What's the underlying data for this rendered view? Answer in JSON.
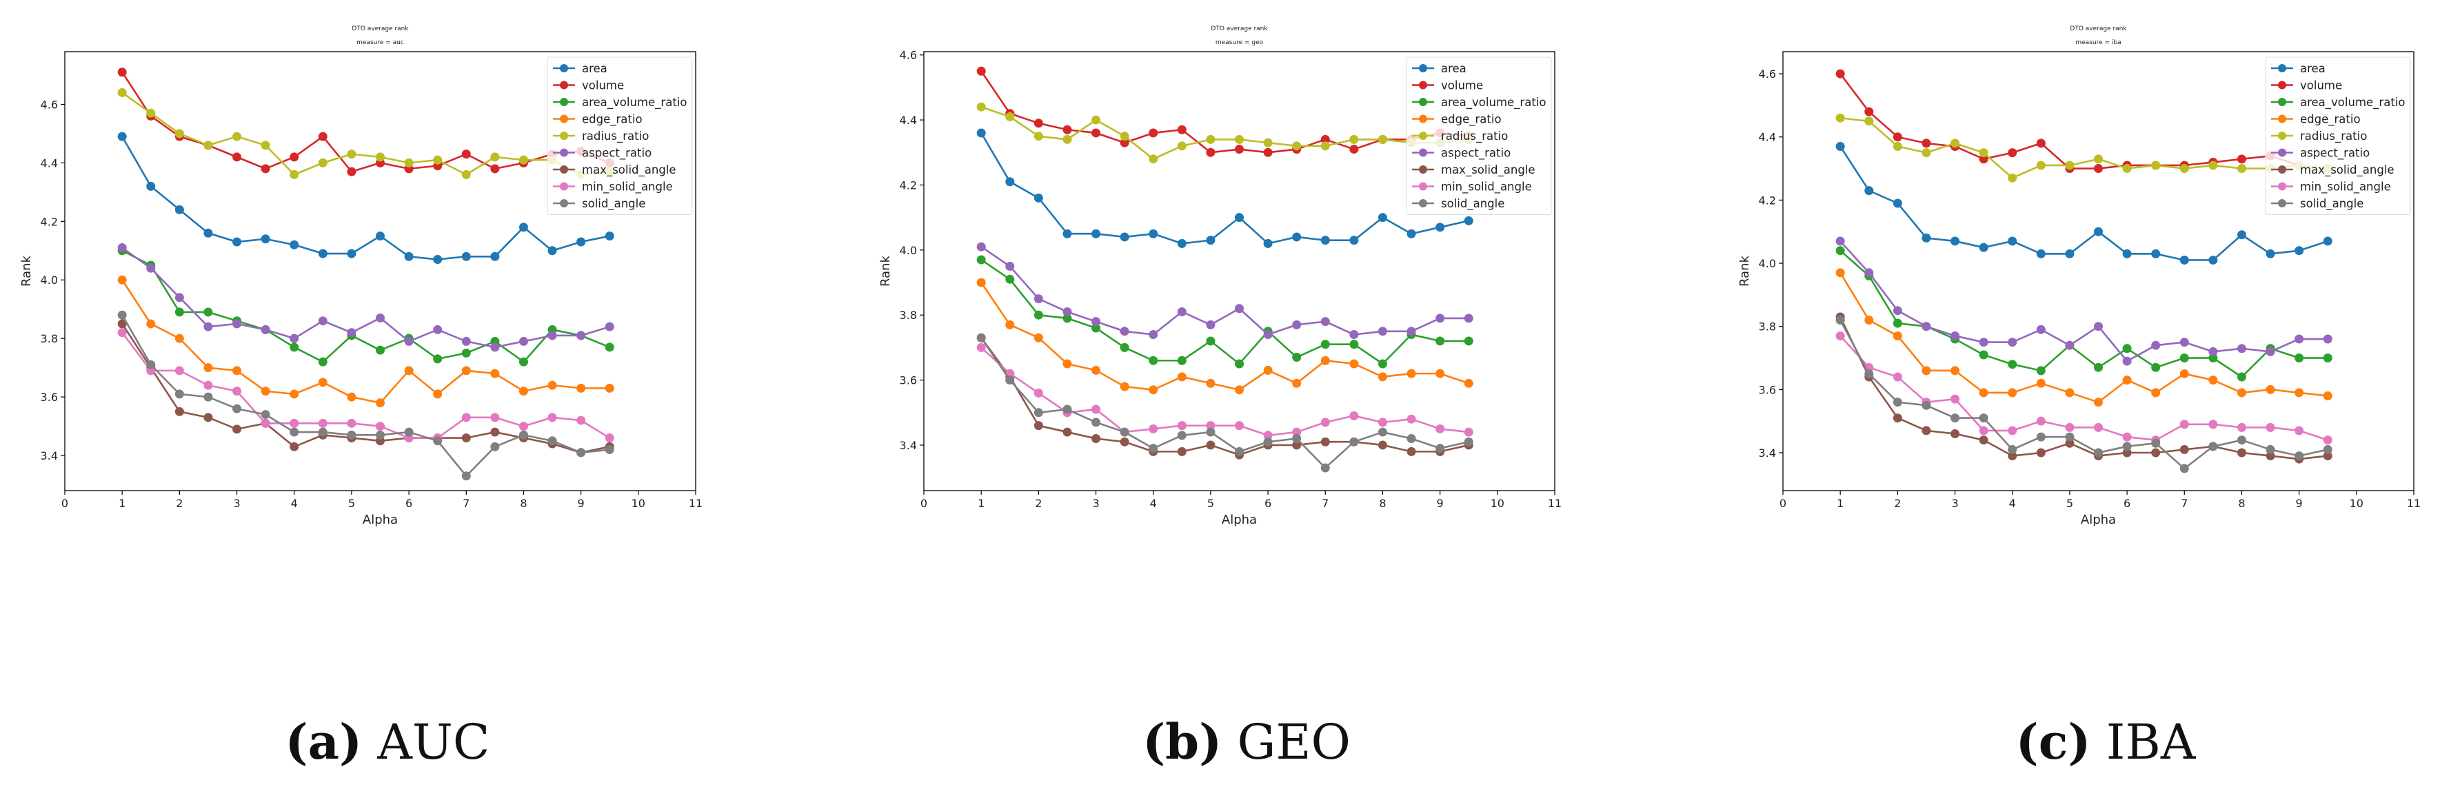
{
  "captions": [
    {
      "tag": "(a)",
      "text": "AUC"
    },
    {
      "tag": "(b)",
      "text": "GEO"
    },
    {
      "tag": "(c)",
      "text": "IBA"
    }
  ],
  "chart_data": [
    {
      "type": "line",
      "title": "DTO average rank",
      "subtitle": "measure = auc",
      "xlabel": "Alpha",
      "ylabel": "Rank",
      "xlim": [
        0,
        11
      ],
      "ylim": [
        3.28,
        4.78
      ],
      "xticks": [
        0,
        1,
        2,
        3,
        4,
        5,
        6,
        7,
        8,
        9,
        10,
        11
      ],
      "yticks": [
        3.4,
        3.6,
        3.8,
        4.0,
        4.2,
        4.4,
        4.6
      ],
      "legend_position": "top-right",
      "grid": false,
      "x": [
        1,
        1.5,
        2,
        2.5,
        3,
        3.5,
        4,
        4.5,
        5,
        5.5,
        6,
        6.5,
        7,
        7.5,
        8,
        8.5,
        9,
        9.5
      ],
      "series": [
        {
          "name": "area",
          "color": "#1f77b4",
          "values": [
            4.49,
            4.32,
            4.24,
            4.16,
            4.13,
            4.14,
            4.12,
            4.09,
            4.09,
            4.15,
            4.08,
            4.07,
            4.08,
            4.08,
            4.18,
            4.1,
            4.13,
            4.15
          ]
        },
        {
          "name": "volume",
          "color": "#d62728",
          "values": [
            4.71,
            4.56,
            4.49,
            4.46,
            4.42,
            4.38,
            4.42,
            4.49,
            4.37,
            4.4,
            4.38,
            4.39,
            4.43,
            4.38,
            4.4,
            4.43,
            4.44,
            4.4
          ]
        },
        {
          "name": "area_volume_ratio",
          "color": "#2ca02c",
          "values": [
            4.1,
            4.05,
            3.89,
            3.89,
            3.86,
            3.83,
            3.77,
            3.72,
            3.81,
            3.76,
            3.8,
            3.73,
            3.75,
            3.79,
            3.72,
            3.83,
            3.81,
            3.77
          ]
        },
        {
          "name": "edge_ratio",
          "color": "#ff7f0e",
          "values": [
            4.0,
            3.85,
            3.8,
            3.7,
            3.69,
            3.62,
            3.61,
            3.65,
            3.6,
            3.58,
            3.69,
            3.61,
            3.69,
            3.68,
            3.62,
            3.64,
            3.63,
            3.63
          ]
        },
        {
          "name": "radius_ratio",
          "color": "#bcbd22",
          "values": [
            4.64,
            4.57,
            4.5,
            4.46,
            4.49,
            4.46,
            4.36,
            4.4,
            4.43,
            4.42,
            4.4,
            4.41,
            4.36,
            4.42,
            4.41,
            4.41,
            4.36,
            4.37
          ]
        },
        {
          "name": "aspect_ratio",
          "color": "#9467bd",
          "values": [
            4.11,
            4.04,
            3.94,
            3.84,
            3.85,
            3.83,
            3.8,
            3.86,
            3.82,
            3.87,
            3.79,
            3.83,
            3.79,
            3.77,
            3.79,
            3.81,
            3.81,
            3.84
          ]
        },
        {
          "name": "max_solid_angle",
          "color": "#8c564b",
          "values": [
            3.85,
            3.7,
            3.55,
            3.53,
            3.49,
            3.51,
            3.43,
            3.47,
            3.46,
            3.45,
            3.46,
            3.46,
            3.46,
            3.48,
            3.46,
            3.44,
            3.41,
            3.43
          ]
        },
        {
          "name": "min_solid_angle",
          "color": "#e377c2",
          "values": [
            3.82,
            3.69,
            3.69,
            3.64,
            3.62,
            3.51,
            3.51,
            3.51,
            3.51,
            3.5,
            3.46,
            3.46,
            3.53,
            3.53,
            3.5,
            3.53,
            3.52,
            3.46
          ]
        },
        {
          "name": "solid_angle",
          "color": "#7f7f7f",
          "values": [
            3.88,
            3.71,
            3.61,
            3.6,
            3.56,
            3.54,
            3.48,
            3.48,
            3.47,
            3.47,
            3.48,
            3.45,
            3.33,
            3.43,
            3.47,
            3.45,
            3.41,
            3.42
          ]
        }
      ]
    },
    {
      "type": "line",
      "title": "DTO average rank",
      "subtitle": "measure = geo",
      "xlabel": "Alpha",
      "ylabel": "Rank",
      "xlim": [
        0,
        11
      ],
      "ylim": [
        3.26,
        4.61
      ],
      "xticks": [
        0,
        1,
        2,
        3,
        4,
        5,
        6,
        7,
        8,
        9,
        10,
        11
      ],
      "yticks": [
        3.4,
        3.6,
        3.8,
        4.0,
        4.2,
        4.4,
        4.6
      ],
      "legend_position": "top-right",
      "grid": false,
      "x": [
        1,
        1.5,
        2,
        2.5,
        3,
        3.5,
        4,
        4.5,
        5,
        5.5,
        6,
        6.5,
        7,
        7.5,
        8,
        8.5,
        9,
        9.5
      ],
      "series": [
        {
          "name": "area",
          "color": "#1f77b4",
          "values": [
            4.36,
            4.21,
            4.16,
            4.05,
            4.05,
            4.04,
            4.05,
            4.02,
            4.03,
            4.1,
            4.02,
            4.04,
            4.03,
            4.03,
            4.1,
            4.05,
            4.07,
            4.09
          ]
        },
        {
          "name": "volume",
          "color": "#d62728",
          "values": [
            4.55,
            4.42,
            4.39,
            4.37,
            4.36,
            4.33,
            4.36,
            4.37,
            4.3,
            4.31,
            4.3,
            4.31,
            4.34,
            4.31,
            4.34,
            4.34,
            4.36,
            4.35
          ]
        },
        {
          "name": "area_volume_ratio",
          "color": "#2ca02c",
          "values": [
            3.97,
            3.91,
            3.8,
            3.79,
            3.76,
            3.7,
            3.66,
            3.66,
            3.72,
            3.65,
            3.75,
            3.67,
            3.71,
            3.71,
            3.65,
            3.74,
            3.72,
            3.72
          ]
        },
        {
          "name": "edge_ratio",
          "color": "#ff7f0e",
          "values": [
            3.9,
            3.77,
            3.73,
            3.65,
            3.63,
            3.58,
            3.57,
            3.61,
            3.59,
            3.57,
            3.63,
            3.59,
            3.66,
            3.65,
            3.61,
            3.62,
            3.62,
            3.59
          ]
        },
        {
          "name": "radius_ratio",
          "color": "#bcbd22",
          "values": [
            4.44,
            4.41,
            4.35,
            4.34,
            4.4,
            4.35,
            4.28,
            4.32,
            4.34,
            4.34,
            4.33,
            4.32,
            4.32,
            4.34,
            4.34,
            4.33,
            4.33,
            4.34
          ]
        },
        {
          "name": "aspect_ratio",
          "color": "#9467bd",
          "values": [
            4.01,
            3.95,
            3.85,
            3.81,
            3.78,
            3.75,
            3.74,
            3.81,
            3.77,
            3.82,
            3.74,
            3.77,
            3.78,
            3.74,
            3.75,
            3.75,
            3.79,
            3.79
          ]
        },
        {
          "name": "max_solid_angle",
          "color": "#8c564b",
          "values": [
            3.73,
            3.61,
            3.46,
            3.44,
            3.42,
            3.41,
            3.38,
            3.38,
            3.4,
            3.37,
            3.4,
            3.4,
            3.41,
            3.41,
            3.4,
            3.38,
            3.38,
            3.4
          ]
        },
        {
          "name": "min_solid_angle",
          "color": "#e377c2",
          "values": [
            3.7,
            3.62,
            3.56,
            3.5,
            3.51,
            3.44,
            3.45,
            3.46,
            3.46,
            3.46,
            3.43,
            3.44,
            3.47,
            3.49,
            3.47,
            3.48,
            3.45,
            3.44
          ]
        },
        {
          "name": "solid_angle",
          "color": "#7f7f7f",
          "values": [
            3.73,
            3.6,
            3.5,
            3.51,
            3.47,
            3.44,
            3.39,
            3.43,
            3.44,
            3.38,
            3.41,
            3.42,
            3.33,
            3.41,
            3.44,
            3.42,
            3.39,
            3.41
          ]
        }
      ]
    },
    {
      "type": "line",
      "title": "DTO average rank",
      "subtitle": "measure = iba",
      "xlabel": "Alpha",
      "ylabel": "Rank",
      "xlim": [
        0,
        11
      ],
      "ylim": [
        3.28,
        4.67
      ],
      "xticks": [
        0,
        1,
        2,
        3,
        4,
        5,
        6,
        7,
        8,
        9,
        10,
        11
      ],
      "yticks": [
        3.4,
        3.6,
        3.8,
        4.0,
        4.2,
        4.4,
        4.6
      ],
      "legend_position": "top-right",
      "grid": false,
      "x": [
        1,
        1.5,
        2,
        2.5,
        3,
        3.5,
        4,
        4.5,
        5,
        5.5,
        6,
        6.5,
        7,
        7.5,
        8,
        8.5,
        9,
        9.5
      ],
      "series": [
        {
          "name": "area",
          "color": "#1f77b4",
          "values": [
            4.37,
            4.23,
            4.19,
            4.08,
            4.07,
            4.05,
            4.07,
            4.03,
            4.03,
            4.1,
            4.03,
            4.03,
            4.01,
            4.01,
            4.09,
            4.03,
            4.04,
            4.07
          ]
        },
        {
          "name": "volume",
          "color": "#d62728",
          "values": [
            4.6,
            4.48,
            4.4,
            4.38,
            4.37,
            4.33,
            4.35,
            4.38,
            4.3,
            4.3,
            4.31,
            4.31,
            4.31,
            4.32,
            4.33,
            4.34,
            4.31,
            4.3
          ]
        },
        {
          "name": "area_volume_ratio",
          "color": "#2ca02c",
          "values": [
            4.04,
            3.96,
            3.81,
            3.8,
            3.76,
            3.71,
            3.68,
            3.66,
            3.74,
            3.67,
            3.73,
            3.67,
            3.7,
            3.7,
            3.64,
            3.73,
            3.7,
            3.7
          ]
        },
        {
          "name": "edge_ratio",
          "color": "#ff7f0e",
          "values": [
            3.97,
            3.82,
            3.77,
            3.66,
            3.66,
            3.59,
            3.59,
            3.62,
            3.59,
            3.56,
            3.63,
            3.59,
            3.65,
            3.63,
            3.59,
            3.6,
            3.59,
            3.58
          ]
        },
        {
          "name": "radius_ratio",
          "color": "#bcbd22",
          "values": [
            4.46,
            4.45,
            4.37,
            4.35,
            4.38,
            4.35,
            4.27,
            4.31,
            4.31,
            4.33,
            4.3,
            4.31,
            4.3,
            4.31,
            4.3,
            4.3,
            4.31,
            4.3
          ]
        },
        {
          "name": "aspect_ratio",
          "color": "#9467bd",
          "values": [
            4.07,
            3.97,
            3.85,
            3.8,
            3.77,
            3.75,
            3.75,
            3.79,
            3.74,
            3.8,
            3.69,
            3.74,
            3.75,
            3.72,
            3.73,
            3.72,
            3.76,
            3.76
          ]
        },
        {
          "name": "max_solid_angle",
          "color": "#8c564b",
          "values": [
            3.83,
            3.64,
            3.51,
            3.47,
            3.46,
            3.44,
            3.39,
            3.4,
            3.43,
            3.39,
            3.4,
            3.4,
            3.41,
            3.42,
            3.4,
            3.39,
            3.38,
            3.39
          ]
        },
        {
          "name": "min_solid_angle",
          "color": "#e377c2",
          "values": [
            3.77,
            3.67,
            3.64,
            3.56,
            3.57,
            3.47,
            3.47,
            3.5,
            3.48,
            3.48,
            3.45,
            3.44,
            3.49,
            3.49,
            3.48,
            3.48,
            3.47,
            3.44
          ]
        },
        {
          "name": "solid_angle",
          "color": "#7f7f7f",
          "values": [
            3.82,
            3.65,
            3.56,
            3.55,
            3.51,
            3.51,
            3.41,
            3.45,
            3.45,
            3.4,
            3.42,
            3.43,
            3.35,
            3.42,
            3.44,
            3.41,
            3.39,
            3.41
          ]
        }
      ]
    }
  ]
}
